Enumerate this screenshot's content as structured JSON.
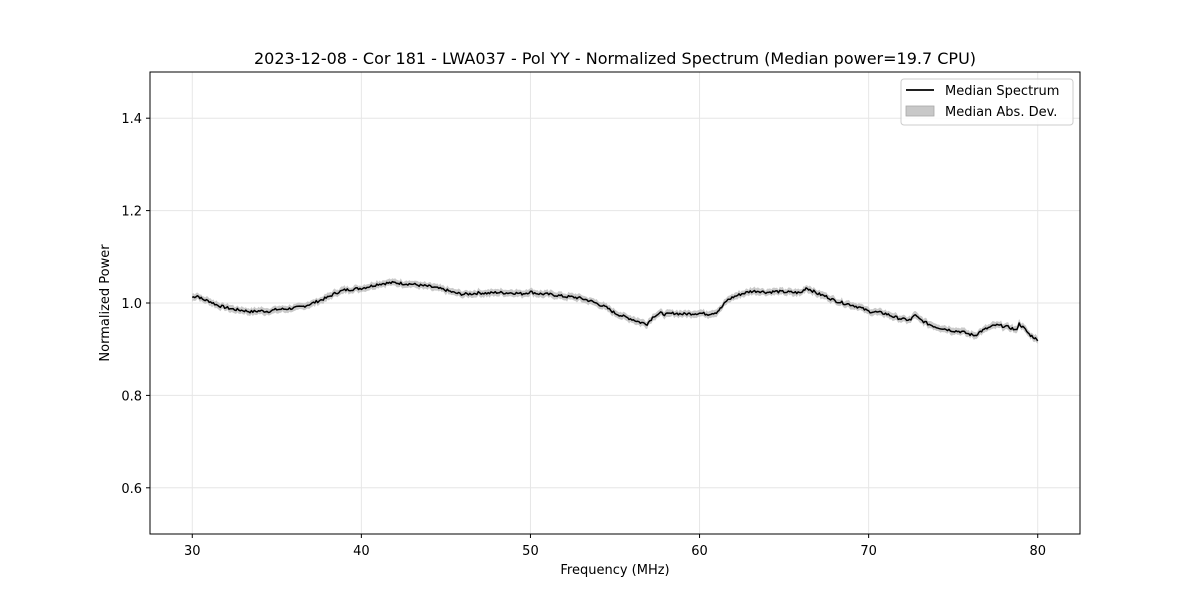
{
  "chart_data": {
    "type": "line",
    "title": "2023-12-08 - Cor 181 - LWA037 - Pol YY - Normalized Spectrum (Median power=19.7 CPU)",
    "xlabel": "Frequency (MHz)",
    "ylabel": "Normalized Power",
    "xlim": [
      27.5,
      82.5
    ],
    "ylim": [
      0.5,
      1.5
    ],
    "xticks": [
      30,
      40,
      50,
      60,
      70,
      80
    ],
    "yticks": [
      0.6,
      0.8,
      1.0,
      1.2,
      1.4
    ],
    "xtick_labels": [
      "30",
      "40",
      "50",
      "60",
      "70",
      "80"
    ],
    "ytick_labels": [
      "0.6",
      "0.8",
      "1.0",
      "1.2",
      "1.4"
    ],
    "grid": true,
    "legend": {
      "position": "top-right",
      "entries": [
        "Median Spectrum",
        "Median Abs. Dev."
      ]
    },
    "colors": {
      "line": "#000000",
      "band": "#b0b0b0",
      "grid": "#e6e6e6"
    },
    "mad": 0.006,
    "series": [
      {
        "name": "Median Spectrum",
        "x": [
          30.0,
          30.3,
          30.6,
          31.0,
          31.5,
          32.0,
          32.5,
          33.0,
          33.5,
          34.0,
          34.5,
          35.0,
          35.5,
          36.0,
          36.5,
          37.0,
          37.5,
          38.0,
          38.5,
          39.0,
          39.5,
          40.0,
          40.5,
          41.0,
          41.5,
          42.0,
          42.5,
          43.0,
          43.5,
          44.0,
          44.5,
          45.0,
          45.5,
          46.0,
          46.5,
          47.0,
          47.5,
          48.0,
          48.5,
          49.0,
          49.5,
          50.0,
          50.5,
          51.0,
          51.5,
          52.0,
          52.5,
          53.0,
          53.5,
          54.0,
          54.5,
          55.0,
          55.5,
          56.0,
          56.5,
          56.9,
          57.3,
          57.7,
          58.0,
          58.5,
          59.0,
          59.5,
          60.0,
          60.5,
          61.0,
          61.3,
          61.6,
          62.0,
          62.5,
          63.0,
          63.5,
          64.0,
          64.5,
          65.0,
          65.5,
          66.0,
          66.3,
          66.6,
          67.0,
          67.5,
          68.0,
          68.5,
          69.0,
          69.5,
          70.0,
          70.5,
          71.0,
          71.5,
          72.0,
          72.5,
          72.7,
          73.0,
          73.5,
          74.0,
          74.5,
          75.0,
          75.5,
          76.0,
          76.3,
          76.6,
          77.0,
          77.5,
          78.0,
          78.5,
          78.7,
          78.9,
          79.2,
          79.5,
          79.8,
          80.0
        ],
        "values": [
          1.012,
          1.016,
          1.008,
          1.004,
          0.995,
          0.99,
          0.986,
          0.984,
          0.981,
          0.983,
          0.982,
          0.986,
          0.987,
          0.989,
          0.992,
          0.998,
          1.005,
          1.012,
          1.022,
          1.028,
          1.03,
          1.032,
          1.036,
          1.041,
          1.043,
          1.044,
          1.042,
          1.041,
          1.038,
          1.036,
          1.032,
          1.028,
          1.022,
          1.019,
          1.02,
          1.022,
          1.021,
          1.023,
          1.022,
          1.022,
          1.02,
          1.024,
          1.02,
          1.019,
          1.017,
          1.014,
          1.013,
          1.01,
          1.005,
          0.998,
          0.99,
          0.978,
          0.971,
          0.965,
          0.958,
          0.955,
          0.972,
          0.978,
          0.975,
          0.978,
          0.976,
          0.977,
          0.978,
          0.976,
          0.98,
          0.99,
          1.005,
          1.013,
          1.02,
          1.025,
          1.026,
          1.023,
          1.025,
          1.024,
          1.023,
          1.022,
          1.033,
          1.028,
          1.02,
          1.014,
          1.005,
          1.0,
          0.996,
          0.99,
          0.982,
          0.98,
          0.977,
          0.97,
          0.965,
          0.963,
          0.975,
          0.965,
          0.955,
          0.948,
          0.944,
          0.94,
          0.938,
          0.932,
          0.93,
          0.938,
          0.945,
          0.952,
          0.95,
          0.945,
          0.94,
          0.955,
          0.945,
          0.932,
          0.925,
          0.918
        ]
      }
    ]
  }
}
